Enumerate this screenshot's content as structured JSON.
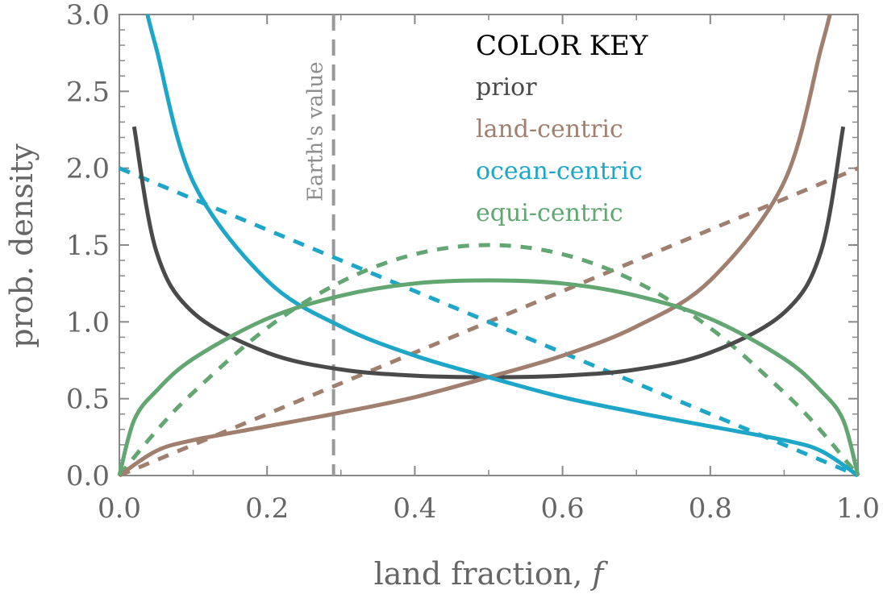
{
  "chart_data": {
    "type": "line",
    "xlabel": "land fraction, ",
    "xlabel_italic": "f",
    "ylabel": "prob. density",
    "xlim": [
      0,
      1
    ],
    "ylim": [
      0,
      3
    ],
    "xticks": [
      "0.0",
      "0.2",
      "0.4",
      "0.6",
      "0.8",
      "1.0"
    ],
    "yticks": [
      "0.0",
      "0.5",
      "1.0",
      "1.5",
      "2.0",
      "2.5",
      "3.0"
    ],
    "grid": false,
    "legend": {
      "title": "COLOR KEY",
      "placement": "top-right",
      "entries": [
        {
          "label": "prior",
          "color": "#4a4a4a"
        },
        {
          "label": "land-centric",
          "color": "#a17f6e"
        },
        {
          "label": "ocean-centric",
          "color": "#1ea6c9"
        },
        {
          "label": "equi-centric",
          "color": "#62a672"
        }
      ]
    },
    "annotation": {
      "label": "Earth's value",
      "x": 0.29,
      "color": "#999999",
      "style": "dashed"
    },
    "series": [
      {
        "name": "prior",
        "style": "solid",
        "color": "#4a4a4a",
        "x": [
          0.02,
          0.05,
          0.1,
          0.2,
          0.3,
          0.4,
          0.5,
          0.6,
          0.7,
          0.8,
          0.9,
          0.95,
          0.98
        ],
        "y": [
          2.27,
          1.46,
          1.06,
          0.8,
          0.69,
          0.65,
          0.64,
          0.65,
          0.69,
          0.8,
          1.06,
          1.46,
          2.27
        ]
      },
      {
        "name": "land-centric",
        "style": "solid",
        "color": "#a17f6e",
        "x": [
          0.0,
          0.05,
          0.1,
          0.2,
          0.3,
          0.4,
          0.5,
          0.6,
          0.7,
          0.8,
          0.9,
          0.95,
          0.962
        ],
        "y": [
          0.0,
          0.16,
          0.23,
          0.32,
          0.41,
          0.51,
          0.64,
          0.78,
          0.97,
          1.27,
          1.91,
          2.78,
          3.0
        ]
      },
      {
        "name": "ocean-centric",
        "style": "solid",
        "color": "#1ea6c9",
        "x": [
          0.038,
          0.05,
          0.1,
          0.2,
          0.3,
          0.4,
          0.5,
          0.6,
          0.7,
          0.8,
          0.9,
          0.95,
          1.0
        ],
        "y": [
          3.0,
          2.78,
          1.91,
          1.27,
          0.97,
          0.78,
          0.64,
          0.51,
          0.41,
          0.32,
          0.23,
          0.16,
          0.0
        ]
      },
      {
        "name": "equi-centric",
        "style": "solid",
        "color": "#62a672",
        "x": [
          0.0,
          0.02,
          0.05,
          0.1,
          0.2,
          0.3,
          0.4,
          0.5,
          0.6,
          0.7,
          0.8,
          0.9,
          0.95,
          0.98,
          1.0
        ],
        "y": [
          0.0,
          0.36,
          0.55,
          0.76,
          1.02,
          1.17,
          1.25,
          1.27,
          1.25,
          1.17,
          1.02,
          0.76,
          0.55,
          0.36,
          0.0
        ]
      },
      {
        "name": "land-centric",
        "style": "dashed",
        "color": "#a17f6e",
        "x": [
          0.0,
          1.0
        ],
        "y": [
          0.0,
          2.0
        ]
      },
      {
        "name": "ocean-centric",
        "style": "dashed",
        "color": "#1ea6c9",
        "x": [
          0.0,
          1.0
        ],
        "y": [
          2.0,
          0.0
        ]
      },
      {
        "name": "equi-centric",
        "style": "dashed",
        "color": "#62a672",
        "x": [
          0.0,
          0.05,
          0.1,
          0.2,
          0.3,
          0.4,
          0.5,
          0.6,
          0.7,
          0.8,
          0.9,
          0.95,
          1.0
        ],
        "y": [
          0.0,
          0.29,
          0.54,
          0.96,
          1.26,
          1.44,
          1.5,
          1.44,
          1.26,
          0.96,
          0.54,
          0.29,
          0.0
        ]
      }
    ]
  }
}
